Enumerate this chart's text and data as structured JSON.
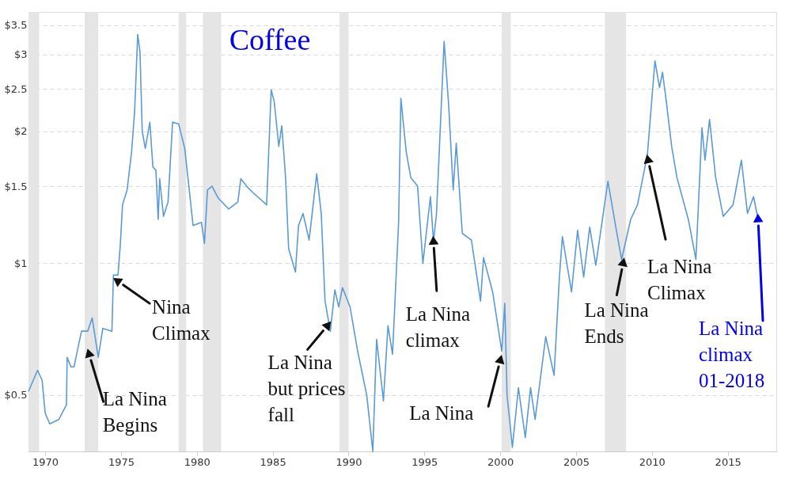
{
  "chart_data": {
    "type": "line",
    "title": "Coffee",
    "x": [
      1968.9,
      1969.5,
      1969.8,
      1970.0,
      1970.3,
      1970.9,
      1971.4,
      1971.45,
      1971.7,
      1971.9,
      1972.2,
      1972.4,
      1972.8,
      1973.1,
      1973.5,
      1973.8,
      1974.4,
      1974.5,
      1974.8,
      1974.95,
      1975.1,
      1975.4,
      1975.7,
      1975.9,
      1976.1,
      1976.25,
      1976.4,
      1976.6,
      1976.9,
      1977.1,
      1977.3,
      1977.45,
      1977.55,
      1977.8,
      1978.1,
      1978.4,
      1978.8,
      1979.2,
      1979.5,
      1979.75,
      1980.3,
      1980.5,
      1980.7,
      1981.0,
      1981.4,
      1982.1,
      1982.7,
      1982.9,
      1983.35,
      1983.7,
      1984.6,
      1984.9,
      1985.1,
      1985.4,
      1985.6,
      1985.85,
      1986.05,
      1986.5,
      1986.7,
      1987.0,
      1987.4,
      1987.9,
      1988.2,
      1988.45,
      1988.8,
      1989.1,
      1989.35,
      1989.6,
      1990.1,
      1990.6,
      1991.2,
      1991.6,
      1991.85,
      1992.3,
      1992.6,
      1992.9,
      1993.3,
      1993.45,
      1993.8,
      1994.1,
      1994.55,
      1994.9,
      1995.4,
      1995.6,
      1995.8,
      1996.3,
      1996.6,
      1996.9,
      1997.1,
      1997.5,
      1998.1,
      1998.7,
      1998.9,
      1999.5,
      2000.1,
      2000.3,
      2000.45,
      2000.8,
      2001.2,
      2001.65,
      2002.0,
      2002.3,
      2003.0,
      2003.55,
      2003.9,
      2004.1,
      2004.7,
      2005.1,
      2005.5,
      2005.9,
      2006.3,
      2007.1,
      2007.6,
      2008.0,
      2008.6,
      2009.05,
      2009.7,
      2010.2,
      2010.5,
      2010.7,
      2010.95,
      2011.3,
      2011.65,
      2012.4,
      2012.9,
      2013.3,
      2013.5,
      2013.8,
      2014.2,
      2014.7,
      2015.35,
      2015.9,
      2016.3,
      2016.7,
      2017.0
    ],
    "series": [
      {
        "color": "#5b9bd5",
        "values": [
          0.51,
          0.57,
          0.54,
          0.455,
          0.43,
          0.44,
          0.475,
          0.61,
          0.58,
          0.58,
          0.65,
          0.7,
          0.7,
          0.75,
          0.61,
          0.71,
          0.7,
          0.94,
          0.94,
          1.1,
          1.36,
          1.47,
          1.8,
          2.23,
          3.33,
          3.04,
          2.0,
          1.83,
          2.1,
          1.66,
          1.63,
          1.26,
          1.56,
          1.28,
          1.38,
          2.1,
          2.08,
          1.83,
          1.47,
          1.22,
          1.24,
          1.11,
          1.47,
          1.5,
          1.41,
          1.33,
          1.38,
          1.56,
          1.49,
          1.45,
          1.36,
          2.49,
          2.34,
          1.85,
          2.06,
          1.57,
          1.08,
          0.955,
          1.22,
          1.3,
          1.13,
          1.6,
          1.3,
          0.82,
          0.7,
          0.87,
          0.795,
          0.88,
          0.795,
          0.63,
          0.5,
          0.372,
          0.67,
          0.485,
          0.72,
          0.62,
          1.24,
          2.38,
          1.8,
          1.57,
          1.5,
          1.0,
          1.42,
          1.12,
          1.3,
          3.21,
          2.3,
          1.47,
          1.88,
          1.17,
          1.13,
          0.82,
          1.03,
          0.86,
          0.63,
          0.81,
          0.5,
          0.38,
          0.52,
          0.4,
          0.52,
          0.44,
          0.68,
          0.555,
          0.93,
          1.15,
          0.86,
          1.19,
          0.93,
          1.21,
          0.99,
          1.54,
          1.22,
          1.02,
          1.26,
          1.36,
          1.77,
          2.9,
          2.52,
          2.73,
          2.34,
          1.85,
          1.57,
          1.26,
          1.02,
          2.04,
          1.72,
          2.13,
          1.57,
          1.28,
          1.36,
          1.72,
          1.3,
          1.42,
          1.26
        ]
      }
    ],
    "xlim": [
      1968.9,
      2018.2
    ],
    "xticks": [
      1970,
      1975,
      1980,
      1985,
      1990,
      1995,
      2000,
      2005,
      2010,
      2015
    ],
    "ylim": [
      0.372,
      3.75
    ],
    "yticks": [
      {
        "value": 0.5,
        "label": "$0.5"
      },
      {
        "value": 1,
        "label": "$1"
      },
      {
        "value": 1.5,
        "label": "$1.5"
      },
      {
        "value": 2,
        "label": "$2"
      },
      {
        "value": 2.5,
        "label": "$2.5"
      },
      {
        "value": 3,
        "label": "$3"
      },
      {
        "value": 3.5,
        "label": "$3.5"
      }
    ],
    "log": "y",
    "grid": "y",
    "marker": "none",
    "line_style": "solid",
    "bands": [
      {
        "axis": "x",
        "from": 1968.9,
        "to": 1969.6,
        "color": "#e5e5e5"
      },
      {
        "axis": "x",
        "from": 1972.6,
        "to": 1973.5,
        "color": "#e5e5e5"
      },
      {
        "axis": "x",
        "from": 1978.8,
        "to": 1979.3,
        "color": "#e5e5e5"
      },
      {
        "axis": "x",
        "from": 1980.4,
        "to": 1981.6,
        "color": "#e5e5e5"
      },
      {
        "axis": "x",
        "from": 1989.4,
        "to": 1990.0,
        "color": "#e5e5e5"
      },
      {
        "axis": "x",
        "from": 2000.1,
        "to": 2000.7,
        "color": "#e5e5e5"
      },
      {
        "axis": "x",
        "from": 2006.9,
        "to": 2008.3,
        "color": "#e5e5e5"
      }
    ],
    "annotations": [
      {
        "text": "La Nina\nBegins",
        "x": 1972.9,
        "y": 0.62
      },
      {
        "text": "Nina\nClimax",
        "x": 1974.8,
        "y": 0.91
      },
      {
        "text": "La Nina\nbut prices\nfall",
        "x": 1988.6,
        "y": 0.72
      },
      {
        "text": "La Nina\nclimax",
        "x": 1995.6,
        "y": 1.12
      },
      {
        "text": "La Nina",
        "x": 2000.0,
        "y": 0.6
      },
      {
        "text": "La Nina\nEnds",
        "x": 2008.1,
        "y": 1.0
      },
      {
        "text": "La Nina\nClimax",
        "x": 2009.75,
        "y": 1.72
      },
      {
        "text": "La Nina\nclimax\n01-2018",
        "x": 2017.0,
        "y": 1.26
      }
    ]
  }
}
